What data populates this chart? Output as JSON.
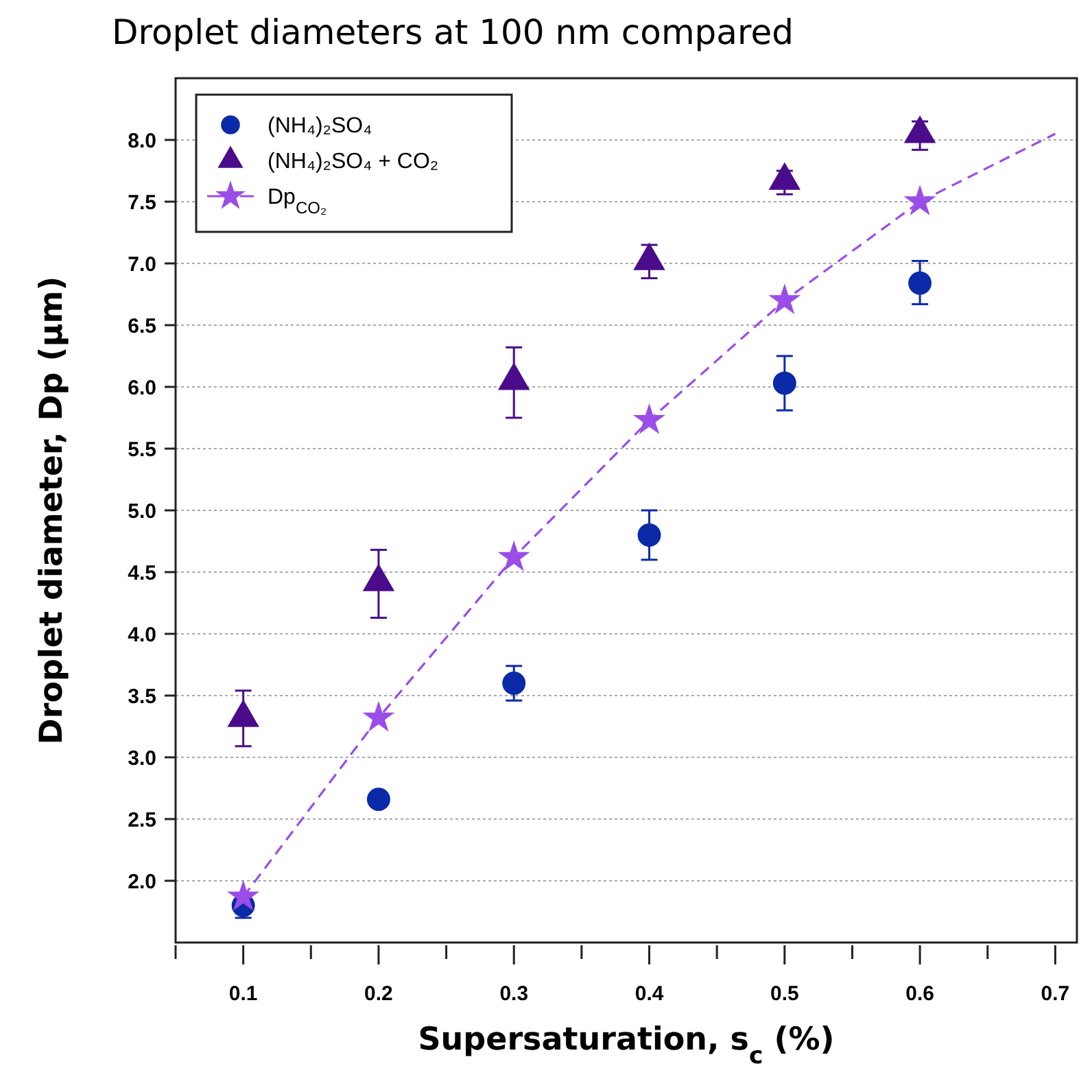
{
  "chart_data": {
    "type": "scatter",
    "title": "Droplet diameters at 100 nm compared",
    "xlabel": "Supersaturation, s$_{c}$ (%)",
    "ylabel": "Droplet diameter, Dp (µm)",
    "xlim": [
      0.05,
      0.716
    ],
    "xticks": [
      {
        "value": 0.05,
        "label": null
      },
      0.1,
      {
        "value": 0.15,
        "label": null
      },
      0.2,
      {
        "value": 0.25,
        "label": null
      },
      0.3,
      {
        "value": 0.35,
        "label": null
      },
      0.4,
      {
        "value": 0.45,
        "label": null
      },
      0.5,
      {
        "value": 0.55,
        "label": null
      },
      0.6,
      {
        "value": 0.65,
        "label": null
      },
      0.7
    ],
    "ylim": [
      1.5,
      8.5
    ],
    "yticks": [
      {
        "value": 2,
        "label": "2.0"
      },
      2.5,
      {
        "value": 3,
        "label": "3.0"
      },
      3.5,
      {
        "value": 4,
        "label": "4.0"
      },
      4.5,
      {
        "value": 5,
        "label": "5.0"
      },
      5.5,
      {
        "value": 6,
        "label": "6.0"
      },
      6.5,
      {
        "value": 7,
        "label": "7.0"
      },
      7.5,
      {
        "value": 8,
        "label": "8.0"
      }
    ],
    "grid": "y",
    "legend": "top left",
    "series": [
      {
        "name": "(NH₄)₂SO₄",
        "marker": "circle",
        "color": "#0a2aa8",
        "x": [
          0.1,
          0.2,
          0.3,
          0.4,
          0.5,
          0.6
        ],
        "values": [
          1.8,
          2.66,
          3.6,
          4.8,
          6.03,
          6.84
        ],
        "errors": [
          [
            1.7,
            1.8
          ],
          null,
          [
            3.46,
            3.74
          ],
          [
            4.6,
            5.0
          ],
          [
            5.81,
            6.25
          ],
          [
            6.67,
            7.02
          ]
        ]
      },
      {
        "name": "(NH₄)₂SO₄ + CO₂",
        "marker": "triangle",
        "color": "#4b0c8c",
        "x": [
          0.1,
          0.2,
          0.3,
          0.4,
          0.5,
          0.6
        ],
        "values": [
          3.32,
          4.42,
          6.05,
          7.02,
          7.67,
          8.05
        ],
        "errors": [
          [
            3.09,
            3.54
          ],
          [
            4.13,
            4.68
          ],
          [
            5.75,
            6.32
          ],
          [
            6.88,
            7.15
          ],
          [
            7.56,
            7.75
          ],
          [
            7.92,
            8.15
          ]
        ]
      },
      {
        "name": "Dp$_{CO₂}$",
        "type": "line",
        "marker": "star",
        "line_style": "dashed",
        "color": "#9b4de8",
        "x": [
          0.1,
          0.2,
          0.3,
          0.4,
          0.5,
          0.6
        ],
        "values": [
          1.87,
          3.32,
          4.62,
          5.73,
          6.7,
          7.5
        ]
      },
      {
        "type": "line",
        "marker": "none",
        "line_style": "dashed",
        "color": "#9b4de8",
        "x": [
          0.6,
          0.7
        ],
        "values": [
          7.5,
          8.05
        ]
      }
    ]
  }
}
